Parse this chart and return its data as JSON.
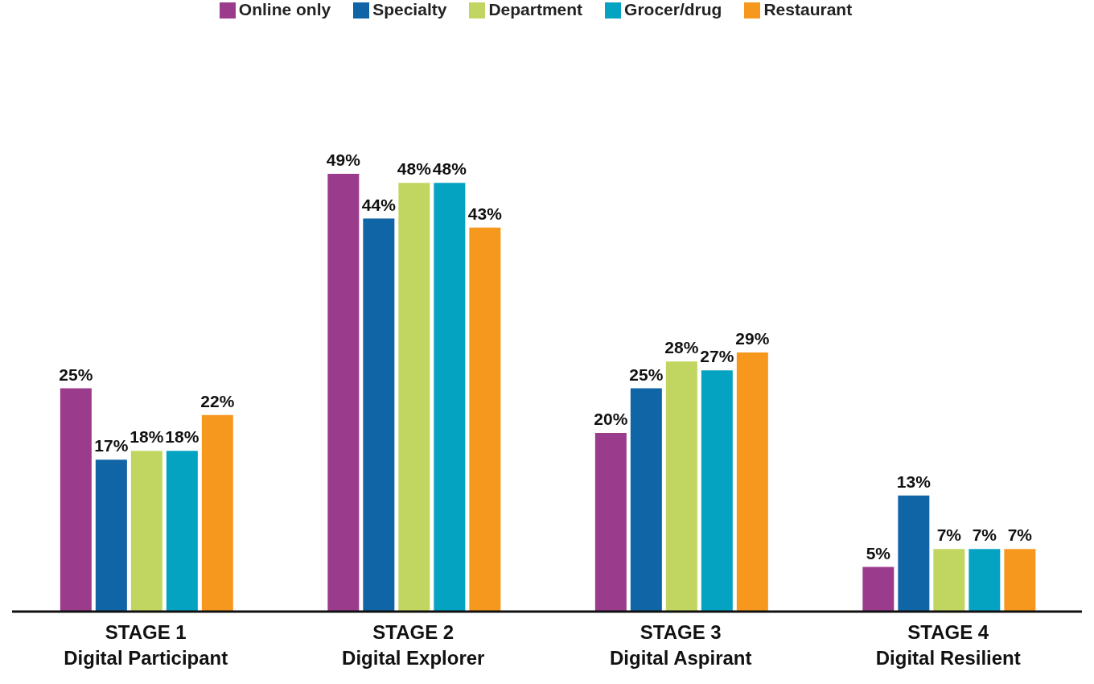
{
  "chart_data": {
    "type": "bar",
    "categories": [
      "STAGE 1\nDigital Participant",
      "STAGE 2\nDigital Explorer",
      "STAGE 3\nDigital Aspirant",
      "STAGE 4\nDigital Resilient"
    ],
    "series": [
      {
        "name": "Online only",
        "color": "#9b3b8c",
        "values": [
          25,
          49,
          20,
          5
        ],
        "value_labels": [
          "25%",
          "49%",
          "20%",
          "5%"
        ]
      },
      {
        "name": "Specialty",
        "color": "#1065a6",
        "values": [
          17,
          44,
          25,
          13
        ],
        "value_labels": [
          "17%",
          "44%",
          "25%",
          "13%"
        ]
      },
      {
        "name": "Department",
        "color": "#c0d660",
        "values": [
          18,
          48,
          28,
          7
        ],
        "value_labels": [
          "18%",
          "48%",
          "28%",
          "7%"
        ]
      },
      {
        "name": "Grocer/drug",
        "color": "#05a3c2",
        "values": [
          18,
          48,
          27,
          7
        ],
        "value_labels": [
          "18%",
          "48%",
          "27%",
          "7%"
        ]
      },
      {
        "name": "Restaurant",
        "color": "#f7981e",
        "values": [
          22,
          43,
          29,
          7
        ],
        "value_labels": [
          "22%",
          "43%",
          "29%",
          "7%"
        ]
      }
    ],
    "legend": "top",
    "grid": false
  }
}
